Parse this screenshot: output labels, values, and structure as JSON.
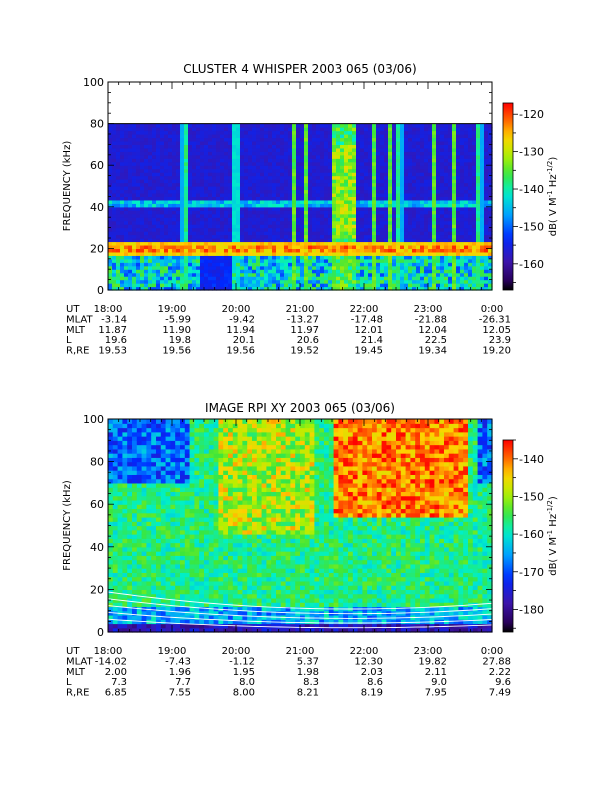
{
  "chart_data": [
    {
      "type": "heatmap",
      "title": "CLUSTER 4 WHISPER 2003 065 (03/06)",
      "ylabel": "FREQUENCY (kHz)",
      "ylim": [
        0,
        100
      ],
      "yticks": [
        "0",
        "20",
        "40",
        "60",
        "80",
        "100"
      ],
      "data_top_kHz": 80,
      "colorbar": {
        "label": "dB( V M⁻¹ Hz⁻¹ᐟ²)",
        "label_parts": [
          "dB( V M",
          "-1",
          " Hz",
          "-1/2",
          ")"
        ],
        "range": [
          -167,
          -117
        ],
        "ticks": [
          "-120",
          "-130",
          "-140",
          "-150",
          "-160"
        ]
      },
      "features": {
        "intense_band_kHz": 20,
        "weak_band_kHz": 42,
        "vertical_bursts_hours": [
          19.2,
          20.0,
          20.9,
          21.1,
          21.55,
          21.7,
          22.15,
          22.4,
          22.55,
          23.1,
          23.4,
          23.8
        ]
      },
      "ephemeris": {
        "row_labels": [
          "UT",
          "MLAT",
          "MLT",
          "L",
          "R,RE"
        ],
        "columns": [
          [
            "18:00",
            "-3.14",
            "11.87",
            "19.6",
            "19.53"
          ],
          [
            "19:00",
            "-5.99",
            "11.90",
            "19.8",
            "19.56"
          ],
          [
            "20:00",
            "-9.42",
            "11.94",
            "20.1",
            "19.56"
          ],
          [
            "21:00",
            "-13.27",
            "11.97",
            "20.6",
            "19.52"
          ],
          [
            "22:00",
            "-17.48",
            "12.01",
            "21.4",
            "19.45"
          ],
          [
            "23:00",
            "-21.88",
            "12.04",
            "22.5",
            "19.34"
          ],
          [
            "0:00",
            "-26.31",
            "12.05",
            "23.9",
            "19.20"
          ]
        ]
      }
    },
    {
      "type": "heatmap",
      "title": "IMAGE RPI XY 2003 065 (03/06)",
      "ylabel": "FREQUENCY (kHz)",
      "ylim": [
        0,
        100
      ],
      "yticks": [
        "0",
        "20",
        "40",
        "60",
        "80",
        "100"
      ],
      "colorbar": {
        "label": "dB( V M⁻¹ Hz⁻¹ᐟ²)",
        "label_parts": [
          "dB( V M",
          "-1",
          " Hz",
          "-1/2",
          ")"
        ],
        "range": [
          -186,
          -135
        ],
        "ticks": [
          "-140",
          "-150",
          "-160",
          "-170",
          "-180"
        ]
      },
      "features": {
        "intense_region_hours": [
          21.5,
          23.6
        ],
        "intense_region_kHz": [
          55,
          100
        ],
        "plasmapause_curves": 5
      },
      "ephemeris": {
        "row_labels": [
          "UT",
          "MLAT",
          "MLT",
          "L",
          "R,RE"
        ],
        "columns": [
          [
            "18:00",
            "-14.02",
            "2.00",
            "7.3",
            "6.85"
          ],
          [
            "19:00",
            "-7.43",
            "1.96",
            "7.7",
            "7.55"
          ],
          [
            "20:00",
            "-1.12",
            "1.95",
            "8.0",
            "8.00"
          ],
          [
            "21:00",
            "5.37",
            "1.98",
            "8.3",
            "8.21"
          ],
          [
            "22:00",
            "12.30",
            "2.03",
            "8.6",
            "8.19"
          ],
          [
            "23:00",
            "19.82",
            "2.11",
            "9.0",
            "7.95"
          ],
          [
            "0:00",
            "27.88",
            "2.22",
            "9.6",
            "7.49"
          ]
        ]
      }
    }
  ]
}
